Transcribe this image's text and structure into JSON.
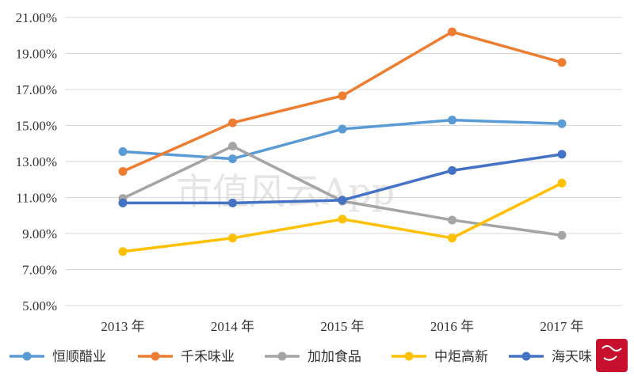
{
  "chart_data": {
    "type": "line",
    "categories": [
      "2013 年",
      "2014 年",
      "2015 年",
      "2016 年",
      "2017 年"
    ],
    "y_ticks": [
      "5.00%",
      "7.00%",
      "9.00%",
      "11.00%",
      "13.00%",
      "15.00%",
      "17.00%",
      "19.00%",
      "21.00%"
    ],
    "ylim": [
      5,
      21
    ],
    "grid": true,
    "legend_position": "bottom",
    "series": [
      {
        "name": "恒顺醋业",
        "color": "#5b9bd5",
        "values": [
          13.55,
          13.15,
          14.8,
          15.3,
          15.1
        ]
      },
      {
        "name": "千禾味业",
        "color": "#ed7d31",
        "values": [
          12.45,
          15.15,
          16.65,
          20.2,
          18.5
        ]
      },
      {
        "name": "加加食品",
        "color": "#a5a5a5",
        "values": [
          10.95,
          13.85,
          10.8,
          9.75,
          8.9
        ]
      },
      {
        "name": "中炬高新",
        "color": "#ffc000",
        "values": [
          8.0,
          8.75,
          9.8,
          8.75,
          11.8
        ]
      },
      {
        "name": "海天味",
        "color": "#4472c4",
        "values": [
          10.7,
          10.7,
          10.85,
          12.5,
          13.4
        ]
      }
    ],
    "watermark": "市值风云App"
  }
}
